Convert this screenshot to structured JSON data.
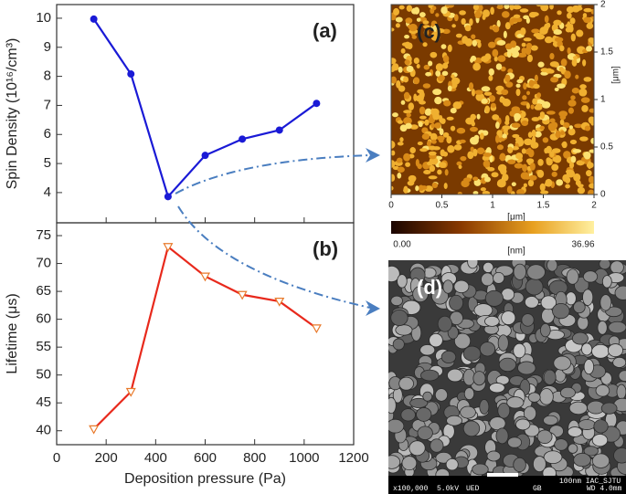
{
  "chart_data": [
    {
      "type": "line",
      "title": "(a)",
      "y_label": "Spin Density (10¹⁶/cm³)",
      "x": [
        150,
        300,
        450,
        600,
        750,
        900,
        1050
      ],
      "xlim": [
        0,
        1200
      ],
      "xticks": [
        0,
        200,
        400,
        600,
        800,
        1000,
        1200
      ],
      "xtick_labels": false,
      "ylim": [
        2.96,
        10.47
      ],
      "yticks": [
        4,
        5,
        6,
        7,
        8,
        9,
        10
      ],
      "series": [
        {
          "color": "#1a1ad6",
          "marker": "filled-circle",
          "marker_color": "#1a1ad6",
          "values": [
            9.97,
            8.08,
            3.86,
            5.28,
            5.84,
            6.15,
            7.07
          ]
        }
      ]
    },
    {
      "type": "line",
      "title": "(b)",
      "y_label": "Lifetime (μs)",
      "x_label": "Deposition pressure (Pa)",
      "x": [
        150,
        300,
        450,
        600,
        750,
        900,
        1050
      ],
      "xlim": [
        0,
        1200
      ],
      "xticks": [
        0,
        200,
        400,
        600,
        800,
        1000,
        1200
      ],
      "xtick_labels": true,
      "ylim": [
        37.5,
        77.3
      ],
      "yticks": [
        40,
        45,
        50,
        55,
        60,
        65,
        70,
        75
      ],
      "series": [
        {
          "color": "#e8291c",
          "marker": "open-triangle-down",
          "marker_color": "#e8792a",
          "values": [
            40.3,
            47,
            73,
            67.7,
            64.4,
            63.2,
            58.4
          ]
        }
      ]
    }
  ],
  "images": {
    "afm": {
      "label": "(c)",
      "x_ticks": [
        "0",
        "0.5",
        "1",
        "1.5",
        "2"
      ],
      "y_ticks": [
        "0",
        "0.5",
        "1",
        "1.5",
        "2"
      ],
      "x_unit": "[μm]",
      "y_unit": "[μm]",
      "colorbar_min": "0.00",
      "colorbar_max": "36.96",
      "colorbar_unit": "[nm]"
    },
    "sem": {
      "label": "(d)",
      "footer": [
        "x100,000",
        "5.0kV",
        "UED",
        "GB",
        "100nm IAC_SJTU",
        "WD 4.0mm"
      ]
    }
  }
}
